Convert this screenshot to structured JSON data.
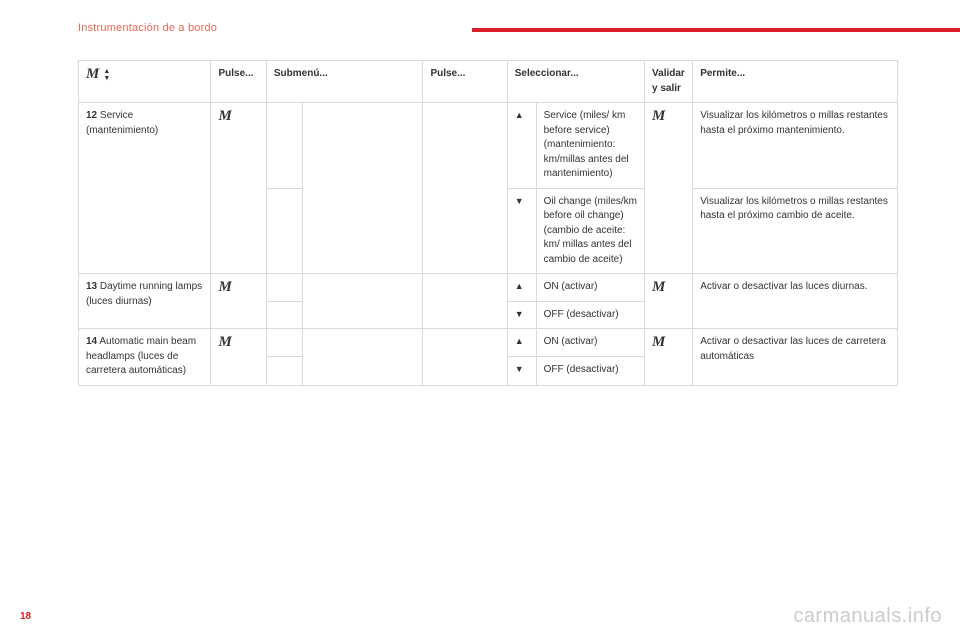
{
  "header": {
    "section_title": "Instrumentación de a bordo",
    "page_number": "18",
    "watermark": "carmanuals.info"
  },
  "glyphs": {
    "M": "M",
    "up": "▲",
    "down": "▼"
  },
  "table": {
    "head": {
      "pulse1": "Pulse...",
      "submenu": "Submenú...",
      "pulse2": "Pulse...",
      "select": "Seleccionar...",
      "validate": "Validar y salir",
      "permit": "Permite..."
    },
    "rows": {
      "r12": {
        "num": "12",
        "label": " Service (mantenimiento)",
        "sel_up": "Service (miles/ km before service) (mantenimiento: km/millas antes del mantenimiento)",
        "perm_up": "Visualizar los kilómetros o millas restantes hasta el próximo mantenimiento.",
        "sel_dn": "Oil change (miles/km before oil change) (cambio de aceite: km/ millas antes del cambio de aceite)",
        "perm_dn": "Visualizar los kilómetros o millas restantes hasta el próximo cambio de aceite."
      },
      "r13": {
        "num": "13",
        "label": " Daytime running lamps (luces diurnas)",
        "sel_up": "ON (activar)",
        "sel_dn": "OFF (desactivar)",
        "perm": "Activar o desactivar las luces diurnas."
      },
      "r14": {
        "num": "14",
        "label": " Automatic main beam headlamps (luces de carretera automáticas)",
        "sel_up": "ON (activar)",
        "sel_dn": "OFF (desactivar)",
        "perm": "Activar o desactivar las luces de carretera automáticas"
      }
    }
  }
}
